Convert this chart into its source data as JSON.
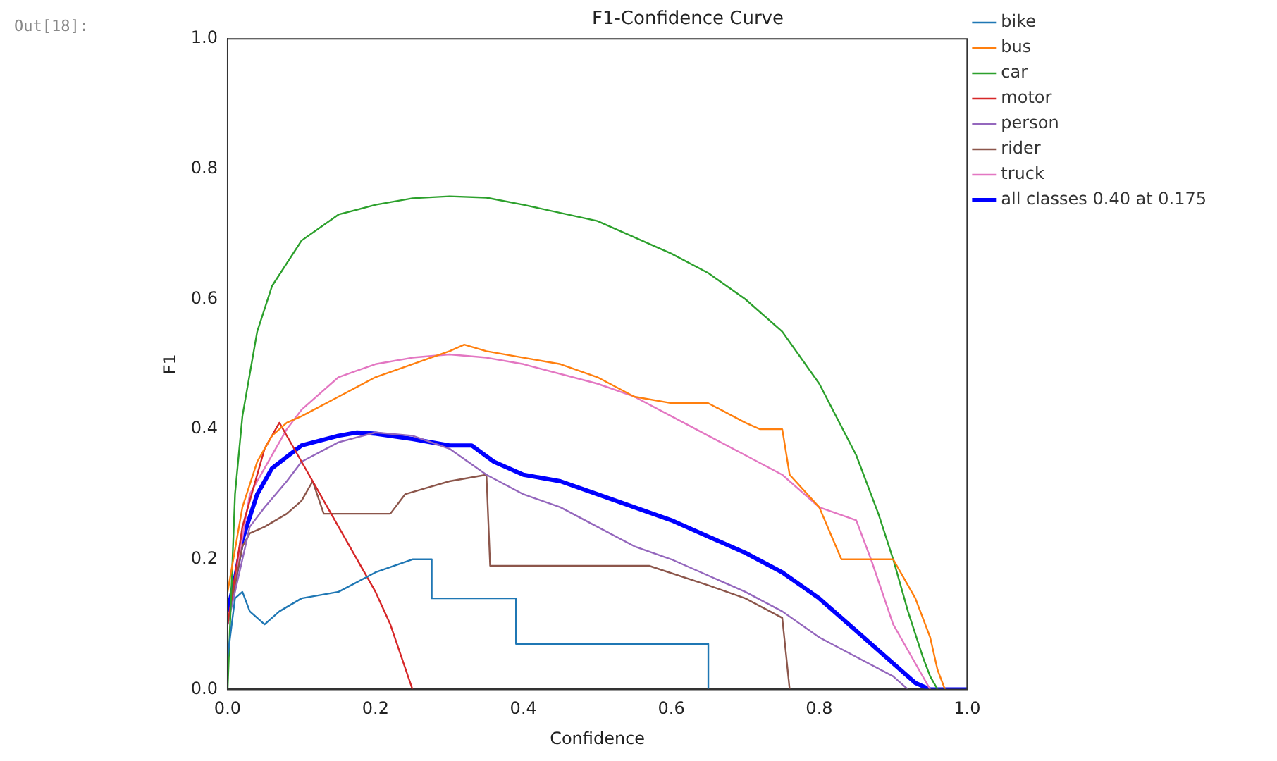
{
  "chart_data": {
    "type": "line",
    "title": "F1-Confidence Curve",
    "xlabel": "Confidence",
    "ylabel": "F1",
    "annotations": [
      "Out[18]:"
    ],
    "xlim": [
      0,
      1
    ],
    "ylim": [
      0,
      1
    ],
    "xticks": [
      {
        "value": 0,
        "label": "0.0"
      },
      0.2,
      0.4,
      0.6,
      0.8,
      {
        "value": 1,
        "label": "1.0"
      }
    ],
    "yticks": [
      {
        "value": 0,
        "label": "0.0"
      },
      0.2,
      0.4,
      0.6,
      0.8,
      {
        "value": 1,
        "label": "1.0"
      }
    ],
    "grid": false,
    "legend": "right",
    "marker": "none",
    "line_style": "solid",
    "series": [
      {
        "name": "bike",
        "color": "#1f77b4",
        "x": [
          0,
          0.01,
          0.02,
          0.03,
          0.04,
          0.05,
          0.07,
          0.1,
          0.15,
          0.2,
          0.25,
          0.276,
          0.276,
          0.39,
          0.39,
          0.65,
          0.65
        ],
        "values": [
          0.05,
          0.14,
          0.15,
          0.12,
          0.11,
          0.1,
          0.12,
          0.14,
          0.15,
          0.18,
          0.2,
          0.2,
          0.14,
          0.14,
          0.07,
          0.07,
          0
        ]
      },
      {
        "name": "bus",
        "color": "#ff7f0e",
        "x": [
          0,
          0.02,
          0.04,
          0.06,
          0.08,
          0.1,
          0.15,
          0.2,
          0.25,
          0.3,
          0.32,
          0.35,
          0.4,
          0.45,
          0.5,
          0.55,
          0.6,
          0.65,
          0.7,
          0.72,
          0.75,
          0.76,
          0.8,
          0.83,
          0.87,
          0.9,
          0.93,
          0.95,
          0.96,
          0.97
        ],
        "values": [
          0.15,
          0.28,
          0.35,
          0.39,
          0.41,
          0.42,
          0.45,
          0.48,
          0.5,
          0.52,
          0.53,
          0.52,
          0.51,
          0.5,
          0.48,
          0.45,
          0.44,
          0.44,
          0.41,
          0.4,
          0.4,
          0.33,
          0.28,
          0.2,
          0.2,
          0.2,
          0.14,
          0.08,
          0.03,
          0
        ]
      },
      {
        "name": "car",
        "color": "#2ca02c",
        "x": [
          0,
          0.01,
          0.02,
          0.04,
          0.06,
          0.1,
          0.15,
          0.2,
          0.25,
          0.3,
          0.35,
          0.4,
          0.5,
          0.6,
          0.65,
          0.7,
          0.75,
          0.8,
          0.85,
          0.88,
          0.9,
          0.92,
          0.94,
          0.95,
          0.96
        ],
        "values": [
          0,
          0.3,
          0.42,
          0.55,
          0.62,
          0.69,
          0.73,
          0.745,
          0.755,
          0.758,
          0.756,
          0.745,
          0.72,
          0.67,
          0.64,
          0.6,
          0.55,
          0.47,
          0.36,
          0.27,
          0.2,
          0.12,
          0.05,
          0.02,
          0
        ]
      },
      {
        "name": "motor",
        "color": "#d62728",
        "x": [
          0,
          0.02,
          0.05,
          0.07,
          0.1,
          0.12,
          0.15,
          0.2,
          0.22,
          0.25
        ],
        "values": [
          0.1,
          0.25,
          0.37,
          0.41,
          0.35,
          0.31,
          0.25,
          0.15,
          0.1,
          0
        ]
      },
      {
        "name": "person",
        "color": "#9467bd",
        "x": [
          0,
          0.03,
          0.05,
          0.08,
          0.1,
          0.15,
          0.2,
          0.25,
          0.3,
          0.35,
          0.4,
          0.45,
          0.5,
          0.55,
          0.6,
          0.7,
          0.75,
          0.8,
          0.85,
          0.9,
          0.92
        ],
        "values": [
          0.1,
          0.25,
          0.28,
          0.32,
          0.35,
          0.38,
          0.395,
          0.39,
          0.37,
          0.33,
          0.3,
          0.28,
          0.25,
          0.22,
          0.2,
          0.15,
          0.12,
          0.08,
          0.05,
          0.02,
          0
        ]
      },
      {
        "name": "rider",
        "color": "#8c564b",
        "x": [
          0,
          0.02,
          0.03,
          0.05,
          0.08,
          0.1,
          0.115,
          0.13,
          0.22,
          0.24,
          0.27,
          0.3,
          0.35,
          0.355,
          0.5,
          0.57,
          0.65,
          0.7,
          0.75,
          0.76
        ],
        "values": [
          0.1,
          0.22,
          0.24,
          0.25,
          0.27,
          0.29,
          0.32,
          0.27,
          0.27,
          0.3,
          0.31,
          0.32,
          0.33,
          0.19,
          0.19,
          0.19,
          0.16,
          0.14,
          0.11,
          0
        ]
      },
      {
        "name": "truck",
        "color": "#e377c2",
        "x": [
          0,
          0.03,
          0.08,
          0.1,
          0.15,
          0.2,
          0.25,
          0.3,
          0.35,
          0.4,
          0.5,
          0.55,
          0.6,
          0.65,
          0.7,
          0.75,
          0.8,
          0.85,
          0.87,
          0.9,
          0.93,
          0.95
        ],
        "values": [
          0.1,
          0.3,
          0.4,
          0.43,
          0.48,
          0.5,
          0.51,
          0.515,
          0.51,
          0.5,
          0.47,
          0.45,
          0.42,
          0.39,
          0.36,
          0.33,
          0.28,
          0.26,
          0.2,
          0.1,
          0.04,
          0
        ]
      },
      {
        "name": "all classes 0.40 at 0.175",
        "color": "#0000ff",
        "x": [
          0,
          0.01,
          0.02,
          0.04,
          0.06,
          0.1,
          0.15,
          0.175,
          0.2,
          0.25,
          0.3,
          0.33,
          0.36,
          0.4,
          0.45,
          0.5,
          0.55,
          0.6,
          0.65,
          0.7,
          0.75,
          0.8,
          0.85,
          0.9,
          0.93,
          0.95,
          1
        ],
        "values": [
          0.12,
          0.17,
          0.23,
          0.3,
          0.34,
          0.375,
          0.39,
          0.395,
          0.393,
          0.385,
          0.375,
          0.375,
          0.35,
          0.33,
          0.32,
          0.3,
          0.28,
          0.26,
          0.235,
          0.21,
          0.18,
          0.14,
          0.09,
          0.04,
          0.01,
          0,
          0
        ]
      }
    ]
  }
}
